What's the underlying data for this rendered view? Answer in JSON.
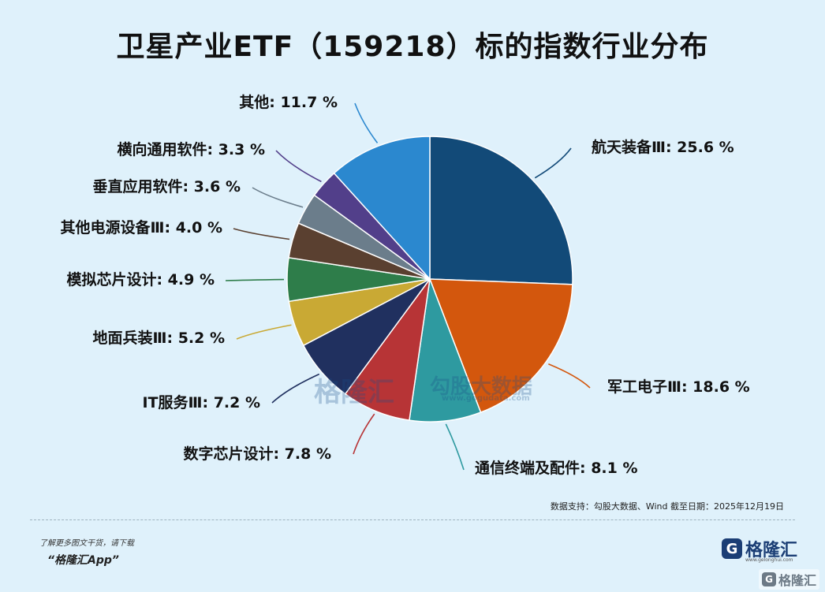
{
  "chart_data": {
    "type": "pie",
    "title": "卫星产业ETF（159218）标的指数行业分布",
    "slices": [
      {
        "label": "航天装备Ⅲ",
        "value": 25.6,
        "display": "25.6 %",
        "color": "#124a78"
      },
      {
        "label": "军工电子Ⅲ",
        "value": 18.6,
        "display": "18.6 %",
        "color": "#d3570d"
      },
      {
        "label": "通信终端及配件",
        "value": 8.1,
        "display": "8.1 %",
        "color": "#2e9aa0"
      },
      {
        "label": "数字芯片设计",
        "value": 7.8,
        "display": "7.8 %",
        "color": "#b73436"
      },
      {
        "label": "IT服务Ⅲ",
        "value": 7.2,
        "display": "7.2 %",
        "color": "#20305f"
      },
      {
        "label": "地面兵装Ⅲ",
        "value": 5.2,
        "display": "5.2 %",
        "color": "#c9a934"
      },
      {
        "label": "模拟芯片设计",
        "value": 4.9,
        "display": "4.9 %",
        "color": "#2e7d4a"
      },
      {
        "label": "其他电源设备Ⅲ",
        "value": 4.0,
        "display": "4.0 %",
        "color": "#5a4030"
      },
      {
        "label": "垂直应用软件",
        "value": 3.6,
        "display": "3.6 %",
        "color": "#6b7d8b"
      },
      {
        "label": "横向通用软件",
        "value": 3.3,
        "display": "3.3 %",
        "color": "#523f8a"
      },
      {
        "label": "其他",
        "value": 11.7,
        "display": "11.7 %",
        "color": "#2b88cf"
      }
    ]
  },
  "watermark": {
    "text": "格隆汇",
    "text2": "勾股大数据",
    "site": "www.gogudata.com"
  },
  "source": "数据支持：勾股大数据、Wind 截至日期：2025年12月19日",
  "footer": {
    "line1": "了解更多图文干货，请下载",
    "line2": "“格隆汇App”"
  },
  "brand": {
    "name": "格隆汇",
    "icon": "G",
    "site": "www.gelonghui.com",
    "corner": "格隆汇"
  }
}
